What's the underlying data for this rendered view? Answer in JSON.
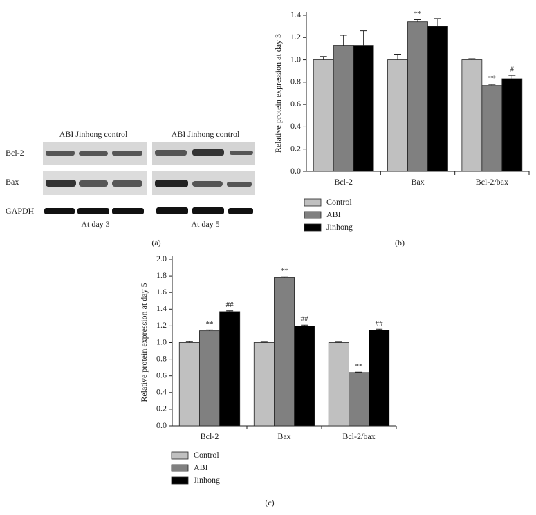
{
  "blot": {
    "days": [
      {
        "header": "ABI Jinhong control",
        "footer": "At day 3"
      },
      {
        "header": "ABI Jinhong control",
        "footer": "At day 5"
      }
    ],
    "rows": [
      "Bcl-2",
      "Bax",
      "GAPDH"
    ],
    "panel_label": "(a)"
  },
  "chart_data": [
    {
      "type": "bar",
      "panel_label": "(b)",
      "ylabel": "Relative protein expression at day 3",
      "categories": [
        "Bcl-2",
        "Bax",
        "Bcl-2/bax"
      ],
      "ylim": [
        0,
        1.4
      ],
      "yticks": [
        {
          "value": 0,
          "label": "0.0"
        },
        0.2,
        0.4,
        0.6,
        0.8,
        {
          "value": 1,
          "label": "1.0"
        },
        1.2,
        1.4
      ],
      "series": [
        {
          "name": "Control",
          "color": "#c0c0c0",
          "values": [
            1.0,
            1.0,
            1.0
          ],
          "errors": [
            0.03,
            0.05,
            0.01
          ],
          "annotations": [
            null,
            null,
            null
          ]
        },
        {
          "name": "ABI",
          "color": "#808080",
          "values": [
            1.13,
            1.34,
            0.77
          ],
          "errors": [
            0.09,
            0.02,
            0.01
          ],
          "annotations": [
            null,
            "**",
            "**"
          ]
        },
        {
          "name": "Jinhong",
          "color": "#000000",
          "values": [
            1.13,
            1.3,
            0.83
          ],
          "errors": [
            0.13,
            0.07,
            0.03
          ],
          "annotations": [
            null,
            null,
            "#"
          ]
        }
      ]
    },
    {
      "type": "bar",
      "panel_label": "(c)",
      "ylabel": "Relative protein expression at day 5",
      "categories": [
        "Bcl-2",
        "Bax",
        "Bcl-2/bax"
      ],
      "ylim": [
        0,
        2.0
      ],
      "yticks": [
        {
          "value": 0,
          "label": "0.0"
        },
        0.2,
        0.4,
        0.6,
        0.8,
        {
          "value": 1,
          "label": "1.0"
        },
        1.2,
        1.4,
        1.6,
        1.8,
        {
          "value": 2,
          "label": "2.0"
        }
      ],
      "series": [
        {
          "name": "Control",
          "color": "#c0c0c0",
          "values": [
            1.0,
            1.0,
            1.0
          ],
          "errors": [
            0.01,
            0.005,
            0.005
          ],
          "annotations": [
            null,
            null,
            null
          ]
        },
        {
          "name": "ABI",
          "color": "#808080",
          "values": [
            1.14,
            1.78,
            0.64
          ],
          "errors": [
            0.01,
            0.01,
            0.005
          ],
          "annotations": [
            "**",
            "**",
            "**"
          ]
        },
        {
          "name": "Jinhong",
          "color": "#000000",
          "values": [
            1.37,
            1.2,
            1.15
          ],
          "errors": [
            0.01,
            0.01,
            0.01
          ],
          "annotations": [
            "##",
            "##",
            "##"
          ]
        }
      ]
    }
  ]
}
